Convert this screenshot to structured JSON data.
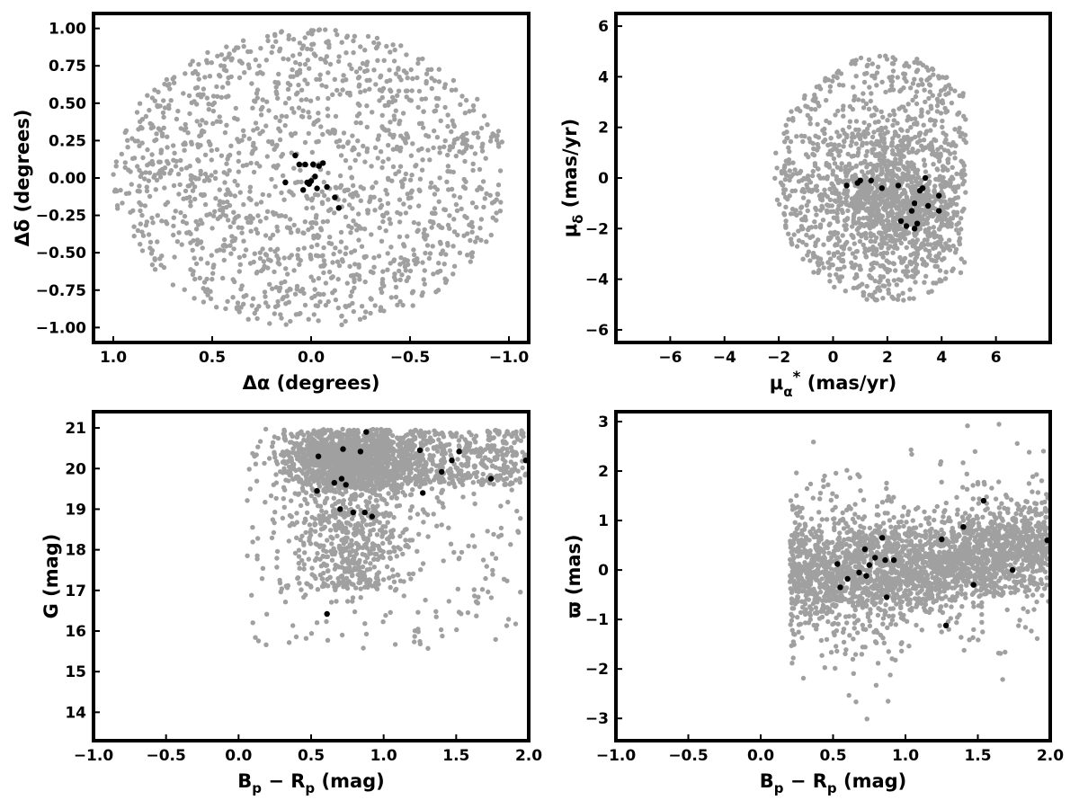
{
  "chart_data": [
    {
      "type": "scatter",
      "panel": "top-left",
      "xlabel": "Δα (degrees)",
      "ylabel": "Δδ (degrees)",
      "xlim": [
        1.1,
        -1.1
      ],
      "ylim": [
        -1.1,
        1.1
      ],
      "x_inverted": true,
      "xticks": [
        1.0,
        0.5,
        0.0,
        -0.5,
        -1.0
      ],
      "xtick_labels": [
        "1.0",
        "0.5",
        "0.0",
        "−0.5",
        "−1.0"
      ],
      "yticks": [
        -1.0,
        -0.75,
        -0.5,
        -0.25,
        0.0,
        0.25,
        0.5,
        0.75,
        1.0
      ],
      "ytick_labels": [
        "−1.00",
        "−0.75",
        "−0.50",
        "−0.25",
        "0.00",
        "0.25",
        "0.50",
        "0.75",
        "1.00"
      ],
      "background_field": {
        "color": "#a0a0a0",
        "count": 1500,
        "shape": "disk",
        "center": [
          0,
          0
        ],
        "radius_x": 1.0,
        "radius_y": 1.0
      },
      "series": [
        {
          "color": "#000000",
          "points": [
            [
              0.08,
              0.15
            ],
            [
              0.06,
              0.09
            ],
            [
              0.03,
              0.09
            ],
            [
              0.02,
              -0.03
            ],
            [
              0.01,
              -0.04
            ],
            [
              -0.01,
              0.09
            ],
            [
              -0.02,
              0.01
            ],
            [
              -0.03,
              -0.07
            ],
            [
              -0.04,
              0.08
            ],
            [
              -0.06,
              0.1
            ],
            [
              -0.08,
              -0.06
            ],
            [
              -0.12,
              -0.13
            ],
            [
              -0.14,
              -0.2
            ],
            [
              0.04,
              -0.08
            ],
            [
              0.13,
              -0.03
            ],
            [
              0.0,
              -0.02
            ]
          ]
        }
      ]
    },
    {
      "type": "scatter",
      "panel": "top-right",
      "xlabel": "μα* (mas/yr)",
      "ylabel": "μδ (mas/yr)",
      "xlim": [
        -8,
        8
      ],
      "ylim": [
        -6.5,
        6.5
      ],
      "xticks": [
        -6,
        -4,
        -2,
        0,
        2,
        4,
        6
      ],
      "xtick_labels": [
        "−6",
        "−4",
        "−2",
        "0",
        "2",
        "4",
        "6"
      ],
      "yticks": [
        -6,
        -4,
        -2,
        0,
        2,
        4,
        6
      ],
      "ytick_labels": [
        "−6",
        "−4",
        "−2",
        "0",
        "2",
        "4",
        "6"
      ],
      "background_field": {
        "color": "#a0a0a0",
        "count": 1800,
        "shape": "disk-truncated",
        "center": [
          2.0,
          0.0
        ],
        "radius_x": 4.2,
        "radius_y": 4.9,
        "xmax": 4.9
      },
      "series": [
        {
          "color": "#000000",
          "points": [
            [
              0.5,
              -0.3
            ],
            [
              0.9,
              -0.2
            ],
            [
              1.0,
              -0.1
            ],
            [
              1.4,
              -0.1
            ],
            [
              1.8,
              -0.4
            ],
            [
              2.4,
              -0.3
            ],
            [
              2.5,
              -1.7
            ],
            [
              2.7,
              -1.9
            ],
            [
              2.9,
              -1.3
            ],
            [
              3.0,
              -2.0
            ],
            [
              3.1,
              -1.8
            ],
            [
              3.2,
              -0.5
            ],
            [
              3.3,
              -0.4
            ],
            [
              3.4,
              0.0
            ],
            [
              3.5,
              -1.1
            ],
            [
              3.9,
              -0.7
            ],
            [
              3.9,
              -1.3
            ],
            [
              3.0,
              -1.0
            ]
          ]
        }
      ]
    },
    {
      "type": "scatter",
      "panel": "bottom-left",
      "xlabel": "Bp − Rp (mag)",
      "ylabel": "G (mag)",
      "xlim": [
        -1.0,
        2.0
      ],
      "ylim": [
        13.3,
        21.4
      ],
      "xticks": [
        -1.0,
        -0.5,
        0.0,
        0.5,
        1.0,
        1.5,
        2.0
      ],
      "xtick_labels": [
        "−1.0",
        "−0.5",
        "0.0",
        "0.5",
        "1.0",
        "1.5",
        "2.0"
      ],
      "yticks": [
        14,
        15,
        16,
        17,
        18,
        19,
        20,
        21
      ],
      "ytick_labels": [
        "14",
        "15",
        "16",
        "17",
        "18",
        "19",
        "20",
        "21"
      ],
      "background_field": {
        "color": "#a0a0a0",
        "count": 2600,
        "shape": "cmd-dense-band",
        "color_range": [
          0.0,
          2.0
        ],
        "mag_range": [
          13.6,
          21.0
        ]
      },
      "series": [
        {
          "color": "#000000",
          "points": [
            [
              0.54,
              19.45
            ],
            [
              0.55,
              20.3
            ],
            [
              0.61,
              16.42
            ],
            [
              0.66,
              19.65
            ],
            [
              0.7,
              19.0
            ],
            [
              0.71,
              19.75
            ],
            [
              0.72,
              20.48
            ],
            [
              0.74,
              19.6
            ],
            [
              0.79,
              18.92
            ],
            [
              0.84,
              20.42
            ],
            [
              0.87,
              18.92
            ],
            [
              0.88,
              20.9
            ],
            [
              0.92,
              18.82
            ],
            [
              1.25,
              20.45
            ],
            [
              1.27,
              19.4
            ],
            [
              1.4,
              19.92
            ],
            [
              1.47,
              20.2
            ],
            [
              1.52,
              20.42
            ],
            [
              1.74,
              19.75
            ],
            [
              1.98,
              20.2
            ]
          ]
        }
      ]
    },
    {
      "type": "scatter",
      "panel": "bottom-right",
      "xlabel": "Bp − Rp (mag)",
      "ylabel": "ϖ (mas)",
      "xlim": [
        -1.0,
        2.0
      ],
      "ylim": [
        -3.45,
        3.2
      ],
      "xticks": [
        -1.0,
        -0.5,
        0.0,
        0.5,
        1.0,
        1.5,
        2.0
      ],
      "xtick_labels": [
        "−1.0",
        "−0.5",
        "0.0",
        "0.5",
        "1.0",
        "1.5",
        "2.0"
      ],
      "yticks": [
        -3,
        -2,
        -1,
        0,
        1,
        2,
        3
      ],
      "ytick_labels": [
        "−3",
        "−2",
        "−1",
        "0",
        "1",
        "2",
        "3"
      ],
      "background_field": {
        "color": "#a0a0a0",
        "count": 2600,
        "shape": "parallax-band",
        "color_range": [
          0.0,
          2.0
        ],
        "parallax_range": [
          -3.2,
          3.0
        ]
      },
      "series": [
        {
          "color": "#000000",
          "points": [
            [
              0.53,
              0.12
            ],
            [
              0.55,
              -0.35
            ],
            [
              0.6,
              -0.18
            ],
            [
              0.68,
              -0.05
            ],
            [
              0.72,
              0.42
            ],
            [
              0.73,
              -0.12
            ],
            [
              0.75,
              0.1
            ],
            [
              0.79,
              0.25
            ],
            [
              0.84,
              0.65
            ],
            [
              0.86,
              0.2
            ],
            [
              0.87,
              -0.55
            ],
            [
              0.92,
              0.2
            ],
            [
              1.25,
              0.62
            ],
            [
              1.28,
              -1.12
            ],
            [
              1.4,
              0.87
            ],
            [
              1.47,
              -0.3
            ],
            [
              1.54,
              1.4
            ],
            [
              1.74,
              0.0
            ],
            [
              1.98,
              0.6
            ]
          ]
        }
      ]
    }
  ]
}
